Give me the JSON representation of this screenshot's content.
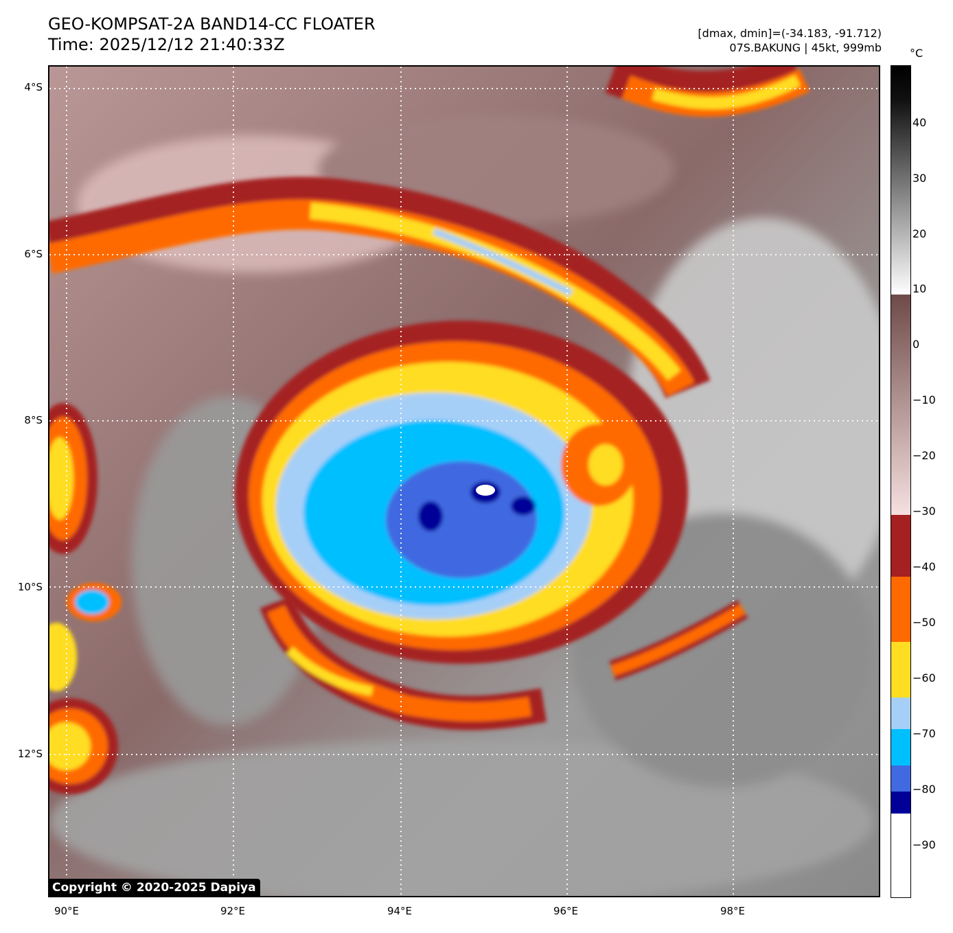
{
  "header": {
    "title_line1": "GEO-KOMPSAT-2A BAND14-CC FLOATER",
    "title_line2": "Time: 2025/12/12 21:40:33Z",
    "info_line1": "[dmax, dmin]=(-34.183, -91.712)",
    "info_line2": "07S.BAKUNG | 45kt, 999mb"
  },
  "axes": {
    "lat_labels": [
      "4°S",
      "6°S",
      "8°S",
      "10°S",
      "12°S"
    ],
    "lon_labels": [
      "90°E",
      "92°E",
      "94°E",
      "96°E",
      "98°E"
    ]
  },
  "colorbar": {
    "unit": "°C",
    "ticks": [
      "40",
      "30",
      "20",
      "10",
      "0",
      "−10",
      "−20",
      "−30",
      "−40",
      "−50",
      "−60",
      "−70",
      "−80",
      "−90"
    ],
    "colors": {
      "warm_black": "#000000",
      "gray_white": "#ffffff",
      "brown": "#6e4a48",
      "pink": "#f3d6d6",
      "red": "#a52020",
      "orange": "#ff6a00",
      "yellow": "#ffdd22",
      "light_blue": "#a6cff8",
      "cyan": "#00bfff",
      "blue": "#4169e1",
      "navy": "#000099",
      "white": "#ffffff"
    }
  },
  "copyright": "Copyright © 2020-2025 Dapiya"
}
